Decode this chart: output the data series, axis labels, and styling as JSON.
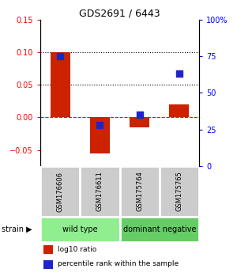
{
  "title": "GDS2691 / 6443",
  "samples": [
    "GSM176606",
    "GSM176611",
    "GSM175764",
    "GSM175765"
  ],
  "log10_ratio": [
    0.1,
    -0.055,
    -0.015,
    0.02
  ],
  "percentile_rank": [
    75,
    28,
    35,
    63
  ],
  "groups": [
    {
      "label": "wild type",
      "samples": [
        0,
        1
      ],
      "color": "#90ee90"
    },
    {
      "label": "dominant negative",
      "samples": [
        2,
        3
      ],
      "color": "#66cc66"
    }
  ],
  "bar_color": "#cc2200",
  "dot_color": "#2222cc",
  "ylim_left": [
    -0.075,
    0.15
  ],
  "ylim_right": [
    0,
    100
  ],
  "yticks_left": [
    -0.05,
    0,
    0.05,
    0.1,
    0.15
  ],
  "yticks_right": [
    0,
    25,
    50,
    75,
    100
  ],
  "ytick_labels_right": [
    "0",
    "25",
    "50",
    "75",
    "100%"
  ],
  "hlines": [
    0.05,
    0.1
  ],
  "zero_line": 0,
  "bg_color": "#ffffff",
  "bar_width": 0.5,
  "dot_size": 40,
  "title_fontsize": 9,
  "tick_fontsize": 7,
  "label_fontsize": 6,
  "group_fontsize": 7,
  "legend_fontsize": 6.5
}
